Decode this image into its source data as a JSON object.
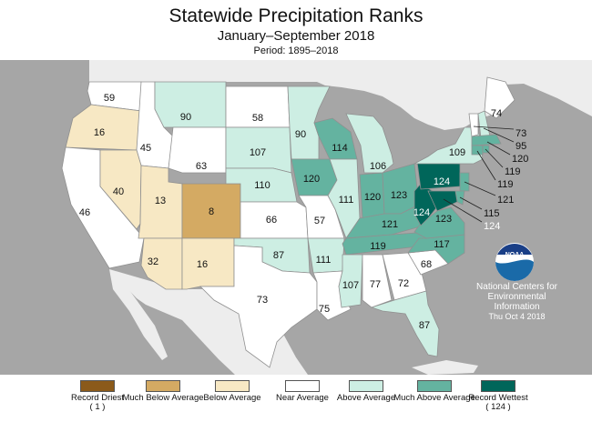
{
  "title": "Statewide Precipitation Ranks",
  "subtitle": "January–September 2018",
  "period": "Period: 1895–2018",
  "credit": {
    "line1": "National Centers for",
    "line2": "Environmental",
    "line3": "Information",
    "line4": "Thu Oct  4 2018",
    "logo_text": "NOAA",
    "logo_icon": "noaa-logo"
  },
  "colors": {
    "record_driest": "#8b5a1a",
    "much_below": "#d4aa63",
    "below": "#f7e8c4",
    "near": "#ffffff",
    "above": "#cdeee3",
    "much_above": "#64b3a0",
    "record_wettest": "#00665a",
    "water": "#a6a6a6",
    "border": "#909090"
  },
  "legend": [
    {
      "key": "record_driest",
      "label": "Record Driest",
      "count": "( 1 )"
    },
    {
      "key": "much_below",
      "label": "Much Below Average",
      "count": ""
    },
    {
      "key": "below",
      "label": "Below Average",
      "count": ""
    },
    {
      "key": "near",
      "label": "Near Average",
      "count": ""
    },
    {
      "key": "above",
      "label": "Above Average",
      "count": ""
    },
    {
      "key": "much_above",
      "label": "Much Above Average",
      "count": ""
    },
    {
      "key": "record_wettest",
      "label": "Record Wettest",
      "count": "( 124 )"
    }
  ],
  "states": [
    {
      "id": "WA",
      "rank": "59",
      "category": "near"
    },
    {
      "id": "OR",
      "rank": "16",
      "category": "below"
    },
    {
      "id": "CA",
      "rank": "46",
      "category": "near"
    },
    {
      "id": "ID",
      "rank": "45",
      "category": "near"
    },
    {
      "id": "NV",
      "rank": "40",
      "category": "below"
    },
    {
      "id": "UT",
      "rank": "13",
      "category": "below"
    },
    {
      "id": "AZ",
      "rank": "32",
      "category": "below"
    },
    {
      "id": "MT",
      "rank": "90",
      "category": "above"
    },
    {
      "id": "WY",
      "rank": "63",
      "category": "near"
    },
    {
      "id": "CO",
      "rank": "8",
      "category": "much_below"
    },
    {
      "id": "NM",
      "rank": "16",
      "category": "below"
    },
    {
      "id": "ND",
      "rank": "58",
      "category": "near"
    },
    {
      "id": "SD",
      "rank": "107",
      "category": "above"
    },
    {
      "id": "NE",
      "rank": "110",
      "category": "above"
    },
    {
      "id": "KS",
      "rank": "66",
      "category": "near"
    },
    {
      "id": "OK",
      "rank": "87",
      "category": "above"
    },
    {
      "id": "TX",
      "rank": "73",
      "category": "near"
    },
    {
      "id": "MN",
      "rank": "90",
      "category": "above"
    },
    {
      "id": "IA",
      "rank": "120",
      "category": "much_above"
    },
    {
      "id": "MO",
      "rank": "57",
      "category": "near"
    },
    {
      "id": "AR",
      "rank": "111",
      "category": "above"
    },
    {
      "id": "LA",
      "rank": "75",
      "category": "near"
    },
    {
      "id": "WI",
      "rank": "114",
      "category": "much_above"
    },
    {
      "id": "IL",
      "rank": "111",
      "category": "above"
    },
    {
      "id": "MI",
      "rank": "106",
      "category": "above"
    },
    {
      "id": "IN",
      "rank": "120",
      "category": "much_above"
    },
    {
      "id": "OH",
      "rank": "123",
      "category": "much_above"
    },
    {
      "id": "KY",
      "rank": "121",
      "category": "much_above"
    },
    {
      "id": "TN",
      "rank": "119",
      "category": "much_above"
    },
    {
      "id": "MS",
      "rank": "107",
      "category": "above"
    },
    {
      "id": "AL",
      "rank": "77",
      "category": "near"
    },
    {
      "id": "GA",
      "rank": "72",
      "category": "near"
    },
    {
      "id": "FL",
      "rank": "87",
      "category": "above"
    },
    {
      "id": "SC",
      "rank": "68",
      "category": "near"
    },
    {
      "id": "NC",
      "rank": "117",
      "category": "much_above"
    },
    {
      "id": "VA",
      "rank": "123",
      "category": "much_above"
    },
    {
      "id": "WV",
      "rank": "124",
      "category": "record_wettest"
    },
    {
      "id": "PA",
      "rank": "124",
      "category": "record_wettest"
    },
    {
      "id": "NY",
      "rank": "109",
      "category": "above"
    },
    {
      "id": "ME",
      "rank": "74",
      "category": "near"
    },
    {
      "id": "VT",
      "rank": "73",
      "category": "near"
    },
    {
      "id": "NH",
      "rank": "95",
      "category": "above"
    },
    {
      "id": "MA",
      "rank": "120",
      "category": "much_above"
    },
    {
      "id": "CT",
      "rank": "119",
      "category": "much_above"
    },
    {
      "id": "RI",
      "rank": "119",
      "category": "much_above"
    },
    {
      "id": "NJ",
      "rank": "121",
      "category": "much_above"
    },
    {
      "id": "DE",
      "rank": "115",
      "category": "much_above"
    },
    {
      "id": "MD",
      "rank": "124",
      "category": "record_wettest"
    }
  ]
}
